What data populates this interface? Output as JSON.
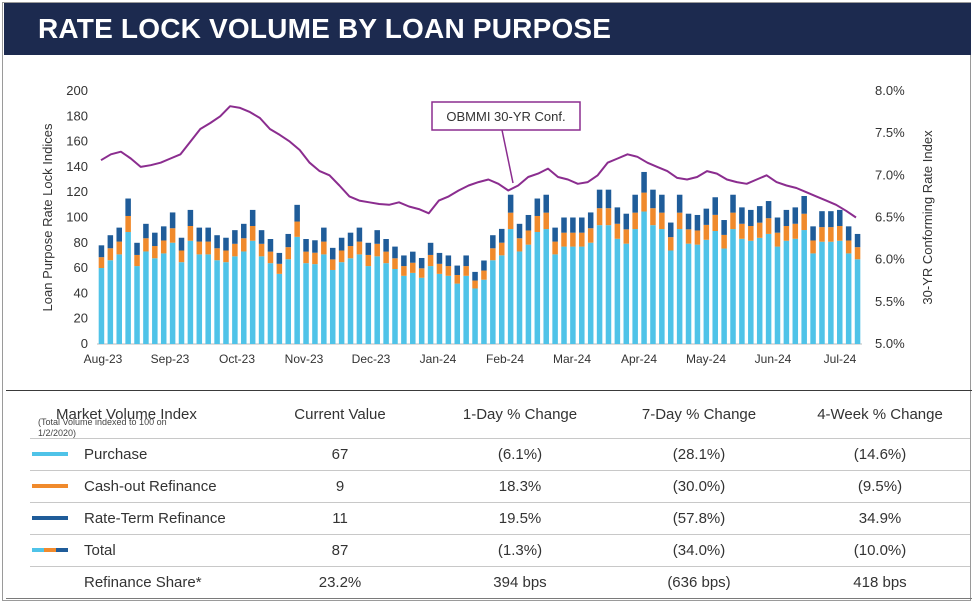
{
  "header": {
    "title": "RATE LOCK VOLUME BY LOAN PURPOSE"
  },
  "colors": {
    "purchase": "#4fc3e8",
    "cashout": "#f08a2c",
    "rateterm": "#1f5c99",
    "obmmi": "#8b2d8f",
    "header_bg": "#1c2a4f"
  },
  "chart_data": {
    "type": "bar",
    "stacked": true,
    "ylabel": "Loan Purpose Rate Lock Indices",
    "y2label": "30-YR Conforming Rate Index",
    "ylim": [
      0,
      200
    ],
    "y_ticks": [
      "0",
      "20",
      "40",
      "60",
      "80",
      "100",
      "120",
      "140",
      "160",
      "180",
      "200"
    ],
    "y2lim": [
      5.0,
      8.0
    ],
    "y2_ticks": [
      "5.0%",
      "5.5%",
      "6.0%",
      "6.5%",
      "7.0%",
      "7.5%",
      "8.0%"
    ],
    "x_ticks": [
      "Aug-23",
      "Sep-23",
      "Oct-23",
      "Nov-23",
      "Dec-23",
      "Jan-24",
      "Feb-24",
      "Mar-24",
      "Apr-24",
      "May-24",
      "Jun-24",
      "Jul-24"
    ],
    "annotation": "OBMMI 30-YR Conf.",
    "series": [
      {
        "name": "Purchase"
      },
      {
        "name": "Cash-out Refinance"
      },
      {
        "name": "Rate-Term Refinance"
      },
      {
        "name": "OBMMI 30-YR Conf."
      }
    ],
    "weekly_totals": [
      78,
      86,
      92,
      115,
      80,
      95,
      88,
      93,
      104,
      84,
      106,
      92,
      92,
      86,
      84,
      90,
      95,
      106,
      90,
      83,
      72,
      87,
      110,
      83,
      82,
      92,
      76,
      84,
      88,
      92,
      80,
      90,
      83,
      77,
      70,
      73,
      68,
      80,
      72,
      70,
      62,
      70,
      57,
      66,
      86,
      91,
      118,
      95,
      102,
      115,
      118,
      92,
      100,
      100,
      100,
      104,
      122,
      122,
      108,
      103,
      118,
      136,
      122,
      118,
      96,
      118,
      103,
      102,
      107,
      116,
      98,
      118,
      108,
      106,
      109,
      113,
      100,
      106,
      108,
      117,
      93,
      105,
      105,
      106,
      93,
      87
    ],
    "purchase_share": 0.77,
    "cashout_share": 0.11,
    "rateterm_share": 0.12,
    "obmmi_rate": [
      7.18,
      7.25,
      7.28,
      7.2,
      7.1,
      7.12,
      7.15,
      7.2,
      7.25,
      7.4,
      7.55,
      7.62,
      7.7,
      7.82,
      7.8,
      7.75,
      7.68,
      7.55,
      7.48,
      7.4,
      7.3,
      7.15,
      7.05,
      7.0,
      6.88,
      6.75,
      6.7,
      6.68,
      6.66,
      6.65,
      6.68,
      6.63,
      6.6,
      6.55,
      6.7,
      6.75,
      6.82,
      6.88,
      6.92,
      6.95,
      6.9,
      6.82,
      6.88,
      6.98,
      7.02,
      7.08,
      6.98,
      6.95,
      6.9,
      6.92,
      7.0,
      7.15,
      7.2,
      7.25,
      7.22,
      7.15,
      7.1,
      7.05,
      6.97,
      6.95,
      6.98,
      7.05,
      7.02,
      6.95,
      6.92,
      6.9,
      6.95,
      7.0,
      6.92,
      6.88,
      6.85,
      6.8,
      6.75,
      6.7,
      6.65,
      6.58,
      6.5
    ]
  },
  "table": {
    "headers": [
      "Market Volume Index",
      "Current Value",
      "1-Day % Change",
      "7-Day % Change",
      "4-Week % Change"
    ],
    "note": "(Total Volume indexed to 100 on 1/2/2020)",
    "rows": [
      {
        "label": "Purchase",
        "current": "67",
        "d1": "(6.1%)",
        "d7": "(28.1%)",
        "w4": "(14.6%)"
      },
      {
        "label": "Cash-out Refinance",
        "current": "9",
        "d1": "18.3%",
        "d7": "(30.0%)",
        "w4": "(9.5%)"
      },
      {
        "label": "Rate-Term Refinance",
        "current": "11",
        "d1": "19.5%",
        "d7": "(57.8%)",
        "w4": "34.9%"
      },
      {
        "label": "Total",
        "current": "87",
        "d1": "(1.3%)",
        "d7": "(34.0%)",
        "w4": "(10.0%)"
      },
      {
        "label": "Refinance Share*",
        "current": "23.2%",
        "d1": "394 bps",
        "d7": "(636 bps)",
        "w4": "418 bps"
      }
    ]
  }
}
